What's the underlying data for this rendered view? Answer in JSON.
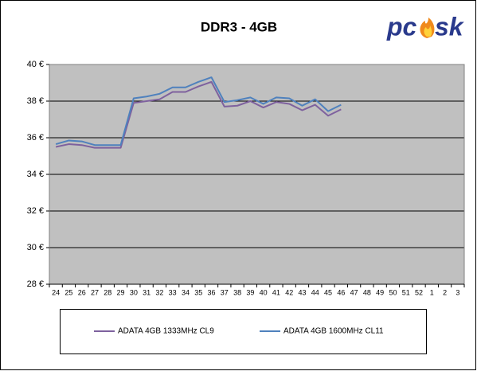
{
  "chart_data": {
    "type": "line",
    "title": "DDR3 - 4GB",
    "logo": [
      "pc",
      "sk"
    ],
    "categories": [
      "24",
      "25",
      "26",
      "27",
      "28",
      "29",
      "30",
      "31",
      "32",
      "33",
      "34",
      "35",
      "36",
      "37",
      "38",
      "39",
      "40",
      "41",
      "42",
      "43",
      "44",
      "45",
      "46",
      "47",
      "48",
      "49",
      "50",
      "51",
      "52",
      "1",
      "2",
      "3"
    ],
    "series": [
      {
        "name": "ADATA 4GB 1333MHz CL9",
        "color": "#7e619e",
        "values": [
          35.5,
          35.65,
          35.6,
          35.45,
          35.45,
          35.45,
          37.9,
          38.0,
          38.1,
          38.5,
          38.5,
          38.8,
          39.05,
          37.7,
          37.75,
          38.0,
          37.65,
          37.95,
          37.85,
          37.5,
          37.8,
          37.2,
          37.55,
          null,
          null,
          null,
          null,
          null,
          null,
          null,
          null,
          null
        ]
      },
      {
        "name": "ADATA 4GB 1600MHz CL11",
        "color": "#4f81bd",
        "values": [
          35.65,
          35.85,
          35.8,
          35.6,
          35.6,
          35.6,
          38.15,
          38.25,
          38.4,
          38.75,
          38.75,
          39.05,
          39.3,
          37.95,
          38.05,
          38.2,
          37.85,
          38.2,
          38.15,
          37.75,
          38.1,
          37.45,
          37.8,
          null,
          null,
          null,
          null,
          null,
          null,
          null,
          null,
          null
        ]
      }
    ],
    "ylim": [
      28,
      40
    ],
    "yticks": [
      {
        "value": 28,
        "label": "28 €"
      },
      {
        "value": 30,
        "label": "30 €"
      },
      {
        "value": 32,
        "label": "32 €"
      },
      {
        "value": 34,
        "label": "34 €"
      },
      {
        "value": 36,
        "label": "36 €"
      },
      {
        "value": 38,
        "label": "38 €"
      },
      {
        "value": 40,
        "label": "40 €"
      }
    ],
    "grid": true,
    "legend": "bottom"
  }
}
